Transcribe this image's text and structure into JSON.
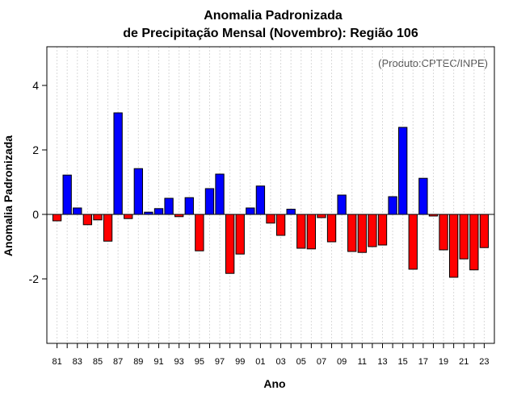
{
  "chart_data": {
    "type": "bar",
    "title": "Anomalia Padronizada",
    "subtitle": "de Precipitação Mensal (Novembro): Região 106",
    "xlabel": "Ano",
    "ylabel": "Anomalia Padronizada",
    "credit": "(Produto:CPTEC/INPE)",
    "ylim": [
      -4,
      5.2
    ],
    "yticks": [
      -2,
      0,
      2,
      4
    ],
    "ytick_labels": [
      "-2",
      "0",
      "2",
      "4"
    ],
    "positive_color": "#0000ff",
    "negative_color": "#ff0000",
    "grid": true,
    "categories": [
      "1981",
      "1982",
      "1983",
      "1984",
      "1985",
      "1986",
      "1987",
      "1988",
      "1989",
      "1990",
      "1991",
      "1992",
      "1993",
      "1994",
      "1995",
      "1996",
      "1997",
      "1998",
      "1999",
      "2000",
      "2001",
      "2002",
      "2003",
      "2004",
      "2005",
      "2006",
      "2007",
      "2008",
      "2009",
      "2010",
      "2011",
      "2012",
      "2013",
      "2014",
      "2015",
      "2016",
      "2017",
      "2018",
      "2019",
      "2020",
      "2021",
      "2022",
      "2023"
    ],
    "xtick_labels": [
      "81",
      "",
      "83",
      "",
      "85",
      "",
      "87",
      "",
      "89",
      "",
      "91",
      "",
      "93",
      "",
      "95",
      "",
      "97",
      "",
      "99",
      "",
      "01",
      "",
      "03",
      "",
      "05",
      "",
      "07",
      "",
      "09",
      "",
      "11",
      "",
      "13",
      "",
      "15",
      "",
      "17",
      "",
      "19",
      "",
      "21",
      "",
      "23"
    ],
    "values": [
      -0.2,
      1.22,
      0.2,
      -0.32,
      -0.17,
      -0.83,
      3.15,
      -0.13,
      1.42,
      0.07,
      0.18,
      0.5,
      -0.07,
      0.52,
      -1.13,
      0.8,
      1.25,
      -1.83,
      -1.23,
      0.2,
      0.88,
      -0.27,
      -0.65,
      0.16,
      -1.05,
      -1.07,
      -0.1,
      -0.85,
      0.6,
      -1.15,
      -1.18,
      -1.0,
      -0.95,
      0.55,
      2.7,
      -1.7,
      1.12,
      -0.05,
      -1.1,
      -1.95,
      -1.38,
      -1.72,
      -1.03
    ]
  }
}
